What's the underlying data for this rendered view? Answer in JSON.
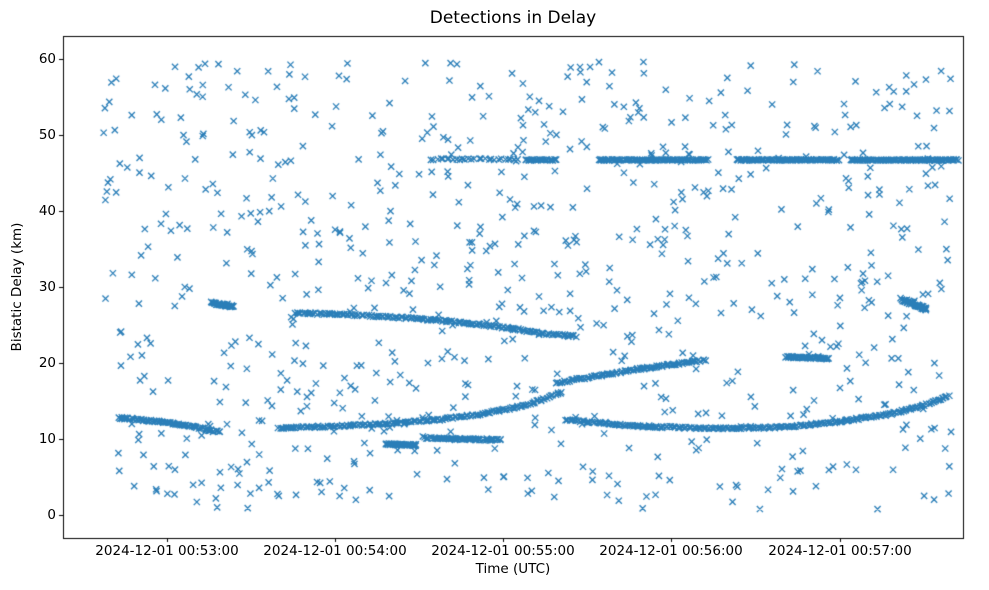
{
  "chart_data": {
    "type": "scatter",
    "marker": "x",
    "color": "#1f77b4",
    "title": "Detections in Delay",
    "xlabel": "Time (UTC)",
    "ylabel": "Bistatic Delay (km)",
    "x_unit": "seconds after 2024-12-01 00:52:00 UTC",
    "xlim": [
      23,
      344
    ],
    "ylim": [
      -3,
      63
    ],
    "grid": false,
    "legend": "none",
    "xticks": [
      {
        "t": 60,
        "label": "2024-12-01 00:53:00"
      },
      {
        "t": 120,
        "label": "2024-12-01 00:54:00"
      },
      {
        "t": 180,
        "label": "2024-12-01 00:55:00"
      },
      {
        "t": 240,
        "label": "2024-12-01 00:56:00"
      },
      {
        "t": 300,
        "label": "2024-12-01 00:57:00"
      }
    ],
    "yticks": [
      0,
      10,
      20,
      30,
      40,
      50,
      60
    ],
    "tracks": [
      {
        "name": "track-early-descending",
        "points": [
          [
            43,
            12.8
          ],
          [
            58,
            12.3
          ],
          [
            70,
            11.6
          ],
          [
            79,
            10.9
          ]
        ],
        "n": 85,
        "jitter_t": 0.4,
        "jitter_y": 0.12
      },
      {
        "name": "track-rising-main",
        "points": [
          [
            100,
            11.45
          ],
          [
            120,
            11.7
          ],
          [
            140,
            12.05
          ],
          [
            158,
            12.6
          ],
          [
            172,
            13.3
          ],
          [
            186,
            14.3
          ],
          [
            196,
            15.4
          ],
          [
            201,
            16.2
          ]
        ],
        "n": 170,
        "jitter_t": 0.4,
        "jitter_y": 0.12
      },
      {
        "name": "track-descending-26",
        "points": [
          [
            106,
            26.6
          ],
          [
            128,
            26.3
          ],
          [
            148,
            25.9
          ],
          [
            166,
            25.3
          ],
          [
            182,
            24.6
          ],
          [
            194,
            23.9
          ],
          [
            206,
            23.5
          ]
        ],
        "n": 160,
        "jitter_t": 0.4,
        "jitter_y": 0.12
      },
      {
        "name": "track-mid-rising-17-20",
        "points": [
          [
            199,
            17.4
          ],
          [
            212,
            18.2
          ],
          [
            226,
            19.1
          ],
          [
            240,
            19.8
          ],
          [
            252,
            20.4
          ]
        ],
        "n": 100,
        "jitter_t": 0.4,
        "jitter_y": 0.12
      },
      {
        "name": "blob-20p7",
        "points": [
          [
            281,
            20.8
          ],
          [
            296,
            20.6
          ]
        ],
        "n": 55,
        "jitter_t": 0.3,
        "jitter_y": 0.1
      },
      {
        "name": "track-late-low",
        "points": [
          [
            202,
            12.6
          ],
          [
            214,
            12.1
          ],
          [
            228,
            11.7
          ],
          [
            244,
            11.5
          ],
          [
            262,
            11.4
          ],
          [
            281,
            11.6
          ],
          [
            300,
            12.3
          ],
          [
            318,
            13.3
          ],
          [
            330,
            14.4
          ],
          [
            339,
            15.7
          ]
        ],
        "n": 240,
        "jitter_t": 0.4,
        "jitter_y": 0.12
      },
      {
        "name": "ridge-46p7-a",
        "points": [
          [
            154,
            46.8
          ],
          [
            185,
            46.8
          ]
        ],
        "n": 28,
        "jitter_t": 0.5,
        "jitter_y": 0.1
      },
      {
        "name": "ridge-46p7-b",
        "points": [
          [
            188,
            46.7
          ],
          [
            199,
            46.7
          ]
        ],
        "n": 30,
        "jitter_t": 0.4,
        "jitter_y": 0.08
      },
      {
        "name": "ridge-46p7-c",
        "points": [
          [
            214,
            46.7
          ],
          [
            253,
            46.7
          ]
        ],
        "n": 110,
        "jitter_t": 0.4,
        "jitter_y": 0.08
      },
      {
        "name": "ridge-46p7-d",
        "points": [
          [
            263,
            46.7
          ],
          [
            300,
            46.7
          ]
        ],
        "n": 105,
        "jitter_t": 0.4,
        "jitter_y": 0.08
      },
      {
        "name": "ridge-46p7-e",
        "points": [
          [
            304,
            46.7
          ],
          [
            342,
            46.7
          ]
        ],
        "n": 115,
        "jitter_t": 0.4,
        "jitter_y": 0.08
      },
      {
        "name": "blob-28-early",
        "points": [
          [
            76,
            27.9
          ],
          [
            84,
            27.4
          ]
        ],
        "n": 40,
        "jitter_t": 0.3,
        "jitter_y": 0.15
      },
      {
        "name": "blob-28-late",
        "points": [
          [
            322,
            28.4
          ],
          [
            331,
            27.1
          ]
        ],
        "n": 55,
        "jitter_t": 0.3,
        "jitter_y": 0.2
      },
      {
        "name": "blob-9p3",
        "points": [
          [
            138,
            9.35
          ],
          [
            149,
            9.2
          ]
        ],
        "n": 45,
        "jitter_t": 0.3,
        "jitter_y": 0.1
      },
      {
        "name": "blob-10",
        "points": [
          [
            152,
            10.15
          ],
          [
            179,
            9.9
          ]
        ],
        "n": 70,
        "jitter_t": 0.4,
        "jitter_y": 0.1
      }
    ],
    "noise": {
      "count": 780,
      "t_range": [
        37,
        341
      ],
      "y_range": [
        0.8,
        59.6
      ],
      "seed": 42
    }
  }
}
